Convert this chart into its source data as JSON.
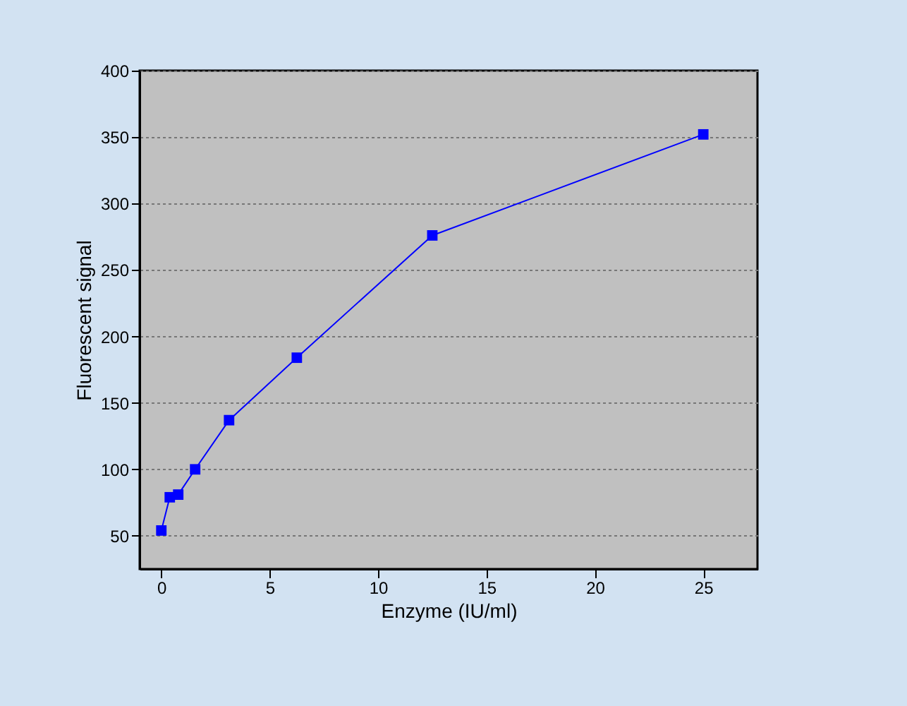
{
  "chart_data": {
    "type": "line",
    "xlabel": "Enzyme (IU/ml)",
    "ylabel": "Fluorescent signal",
    "x": [
      0,
      0.39,
      0.78,
      1.56,
      3.125,
      6.25,
      12.5,
      25
    ],
    "series": [
      {
        "color": "#0000ff",
        "values": [
          54,
          79,
          81,
          100,
          137,
          184,
          276,
          352
        ]
      }
    ],
    "xlim": [
      -1,
      27.5
    ],
    "xticks": [
      0,
      5,
      10,
      15,
      20,
      25
    ],
    "ylim": [
      25,
      400
    ],
    "yticks": [
      50,
      100,
      150,
      200,
      250,
      300,
      350,
      400
    ],
    "grid": "y",
    "marker": "square",
    "line_style": "solid",
    "legend": false
  }
}
